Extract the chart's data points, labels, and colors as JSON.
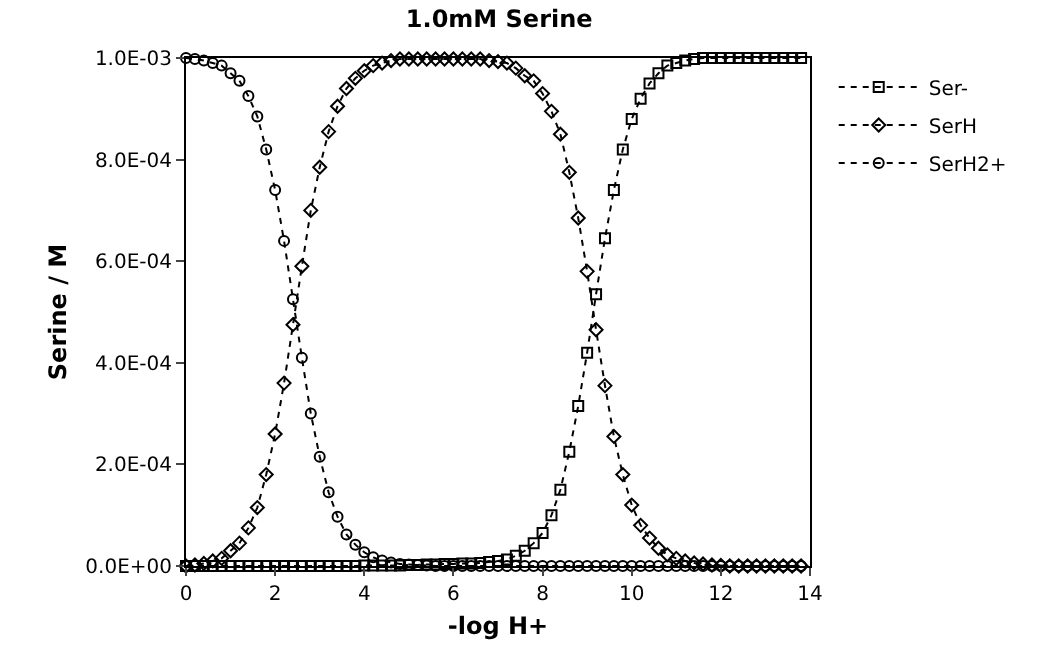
{
  "chart_data": {
    "type": "line",
    "title": "1.0mM Serine",
    "xlabel": "-log H+",
    "ylabel": "Serine / M",
    "x": [
      0,
      0.2,
      0.4,
      0.6,
      0.8,
      1.0,
      1.2,
      1.4,
      1.6,
      1.8,
      2.0,
      2.2,
      2.4,
      2.6,
      2.8,
      3.0,
      3.2,
      3.4,
      3.6,
      3.8,
      4.0,
      4.2,
      4.4,
      4.6,
      4.8,
      5.0,
      5.2,
      5.4,
      5.6,
      5.8,
      6.0,
      6.2,
      6.4,
      6.6,
      6.8,
      7.0,
      7.2,
      7.4,
      7.6,
      7.8,
      8.0,
      8.2,
      8.4,
      8.6,
      8.8,
      9.0,
      9.2,
      9.4,
      9.6,
      9.8,
      10.0,
      10.2,
      10.4,
      10.6,
      10.8,
      11.0,
      11.2,
      11.4,
      11.6,
      11.8,
      12.0,
      12.2,
      12.4,
      12.6,
      12.8,
      13.0,
      13.2,
      13.4,
      13.6,
      13.8
    ],
    "series": [
      {
        "name": "Ser-",
        "color": "#000000",
        "marker": "square",
        "values": [
          0,
          0,
          0,
          0,
          0,
          0,
          0,
          0,
          0,
          0,
          0,
          0,
          0,
          0,
          0,
          0,
          0,
          0,
          0,
          0,
          1e-06,
          1e-06,
          1e-06,
          1e-06,
          1e-06,
          2e-06,
          2e-06,
          3e-06,
          3e-06,
          4e-06,
          4e-06,
          5e-06,
          5e-06,
          6e-06,
          8e-06,
          1e-05,
          1.3e-05,
          2e-05,
          3e-05,
          4.5e-05,
          6.5e-05,
          0.0001,
          0.00015,
          0.000225,
          0.000315,
          0.00042,
          0.000535,
          0.000645,
          0.00074,
          0.00082,
          0.00088,
          0.00092,
          0.00095,
          0.00097,
          0.000985,
          0.00099,
          0.000995,
          0.000998,
          0.001,
          0.001,
          0.001,
          0.001,
          0.001,
          0.001,
          0.001,
          0.001,
          0.001,
          0.001,
          0.001,
          0.001
        ]
      },
      {
        "name": "SerH",
        "color": "#000000",
        "marker": "diamond",
        "values": [
          0,
          2e-06,
          5e-06,
          1e-05,
          1.5e-05,
          3e-05,
          4.5e-05,
          7.5e-05,
          0.000115,
          0.00018,
          0.00026,
          0.00036,
          0.000475,
          0.00059,
          0.0007,
          0.000785,
          0.000855,
          0.000905,
          0.00094,
          0.00096,
          0.000975,
          0.000985,
          0.00099,
          0.000995,
          0.000998,
          0.000998,
          0.000998,
          0.000998,
          0.000998,
          0.000998,
          0.000998,
          0.000998,
          0.000998,
          0.000998,
          0.000995,
          0.000993,
          0.00099,
          0.00098,
          0.000965,
          0.000955,
          0.00093,
          0.000895,
          0.00085,
          0.000775,
          0.000685,
          0.00058,
          0.000465,
          0.000355,
          0.000255,
          0.00018,
          0.00012,
          8e-05,
          5.5e-05,
          3.5e-05,
          2.2e-05,
          1.5e-05,
          1e-05,
          6e-06,
          4e-06,
          2e-06,
          1e-06,
          0,
          0,
          0,
          0,
          0,
          0,
          0,
          0,
          0
        ]
      },
      {
        "name": "SerH2+",
        "color": "#000000",
        "marker": "circle",
        "values": [
          0.001,
          0.000998,
          0.000995,
          0.00099,
          0.000985,
          0.00097,
          0.000955,
          0.000925,
          0.000885,
          0.00082,
          0.00074,
          0.00064,
          0.000525,
          0.00041,
          0.0003,
          0.000215,
          0.000145,
          9.7e-05,
          6.2e-05,
          4.2e-05,
          2.7e-05,
          1.7e-05,
          1.1e-05,
          7e-06,
          4e-06,
          3e-06,
          2e-06,
          1e-06,
          0,
          0,
          0,
          0,
          0,
          0,
          0,
          0,
          0,
          0,
          0,
          0,
          0,
          0,
          0,
          0,
          0,
          0,
          0,
          0,
          0,
          0,
          0,
          0,
          0,
          0,
          0,
          0,
          0,
          0,
          0,
          0,
          0,
          0,
          0,
          0,
          0,
          0,
          0,
          0,
          0,
          0
        ]
      }
    ],
    "xlim": [
      0,
      14
    ],
    "xticks": [
      0,
      2,
      4,
      6,
      8,
      10,
      12,
      14
    ],
    "ylim": [
      0,
      0.001
    ],
    "yticks": [
      {
        "value": 0,
        "label": "0.0E+00"
      },
      {
        "value": 0.0002,
        "label": "2.0E-04"
      },
      {
        "value": 0.0004,
        "label": "4.0E-04"
      },
      {
        "value": 0.0006,
        "label": "6.0E-04"
      },
      {
        "value": 0.0008,
        "label": "8.0E-04"
      },
      {
        "value": 0.001,
        "label": "1.0E-03"
      }
    ],
    "line_style": "dotted",
    "grid": false,
    "legend": "top right"
  }
}
